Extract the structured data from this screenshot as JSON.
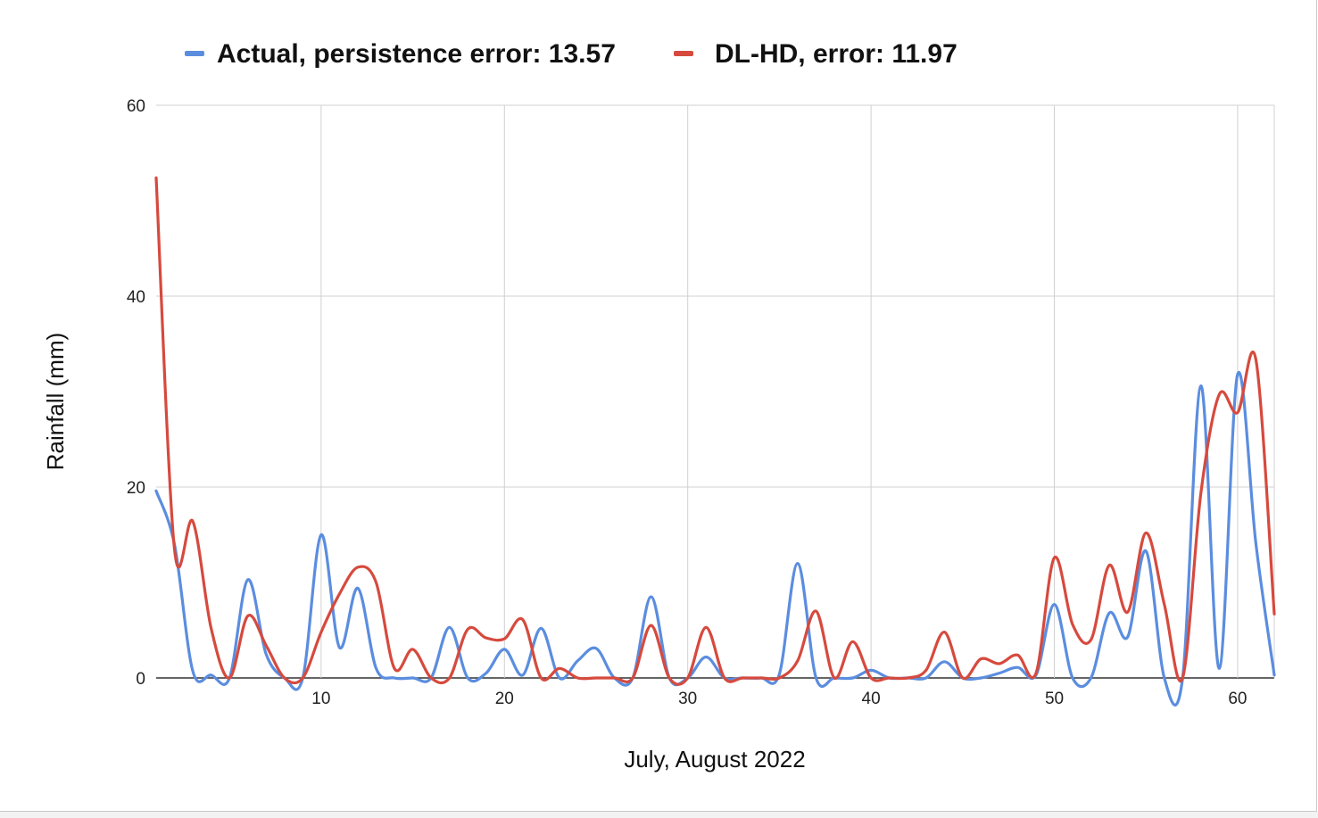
{
  "chart_data": {
    "type": "line",
    "title": "",
    "xlabel": "July, August 2022",
    "ylabel": "Rainfall (mm)",
    "xlim": [
      1,
      62
    ],
    "ylim": [
      0,
      60
    ],
    "x_ticks": [
      10,
      20,
      30,
      40,
      50,
      60
    ],
    "y_ticks": [
      0,
      20,
      40,
      60
    ],
    "grid": true,
    "legend_position": "top",
    "series": [
      {
        "name": "Actual, persistence error: 13.57",
        "color": "#5b8ddf",
        "x": [
          1,
          2,
          3,
          4,
          5,
          6,
          7,
          8,
          9,
          10,
          11,
          12,
          13,
          14,
          15,
          16,
          17,
          18,
          19,
          20,
          21,
          22,
          23,
          24,
          25,
          26,
          27,
          28,
          29,
          30,
          31,
          32,
          33,
          34,
          35,
          36,
          37,
          38,
          39,
          40,
          41,
          42,
          43,
          44,
          45,
          46,
          47,
          48,
          49,
          50,
          51,
          52,
          53,
          54,
          55,
          56,
          57,
          58,
          59,
          60,
          61,
          62
        ],
        "values": [
          19.6,
          14,
          0.7,
          0.3,
          0,
          10.3,
          2.5,
          0,
          0,
          15,
          3.2,
          9.4,
          1,
          0,
          0,
          0,
          5.3,
          0,
          0.5,
          3,
          0.3,
          5.2,
          0,
          1.8,
          3.1,
          0,
          0,
          8.5,
          0,
          0,
          2.2,
          0,
          0,
          0,
          0.4,
          12,
          0,
          0,
          0,
          0.8,
          0,
          0,
          0,
          1.7,
          0,
          0,
          0.5,
          1.1,
          0.3,
          7.7,
          0,
          0,
          6.8,
          4.3,
          13.3,
          0,
          0,
          30.6,
          1,
          31.8,
          14,
          0.3
        ]
      },
      {
        "name": "DL-HD, error: 11.97",
        "color": "#d64a3e",
        "x": [
          1,
          2,
          3,
          4,
          5,
          6,
          7,
          8,
          9,
          10,
          11,
          12,
          13,
          14,
          15,
          16,
          17,
          18,
          19,
          20,
          21,
          22,
          23,
          24,
          25,
          26,
          27,
          28,
          29,
          30,
          31,
          32,
          33,
          34,
          35,
          36,
          37,
          38,
          39,
          40,
          41,
          42,
          43,
          44,
          45,
          46,
          47,
          48,
          49,
          50,
          51,
          52,
          53,
          54,
          55,
          56,
          57,
          58,
          59,
          60,
          61,
          62
        ],
        "values": [
          52.4,
          13.5,
          16.4,
          5.2,
          0,
          6.5,
          3.4,
          0,
          0,
          4.8,
          8.8,
          11.6,
          10,
          1,
          3,
          0,
          0,
          5.1,
          4.2,
          4.1,
          6.1,
          0,
          1,
          0,
          0,
          0,
          0,
          5.5,
          0,
          0,
          5.3,
          0,
          0,
          0,
          0,
          1.8,
          7,
          0,
          3.8,
          0,
          0,
          0,
          0.8,
          4.8,
          0,
          2,
          1.5,
          2.4,
          0.5,
          12.6,
          5.6,
          4,
          11.8,
          6.9,
          15.2,
          7.7,
          0,
          19.4,
          29.7,
          27.8,
          33.3,
          6.7
        ]
      }
    ]
  }
}
